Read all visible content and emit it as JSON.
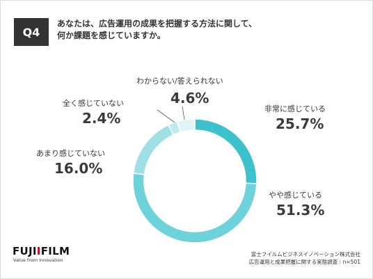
{
  "question": {
    "badge": "Q4",
    "line1": "あなたは、広告運用の成果を把握する方法に関して、",
    "line2": "何か課題を感じていますか。"
  },
  "chart_data": {
    "type": "pie",
    "categories": [
      "非常に感じている",
      "やや感じている",
      "あまり感じていない",
      "全く感じていない",
      "わからない/答えられない"
    ],
    "values": [
      25.7,
      51.3,
      16.0,
      2.4,
      4.6
    ],
    "value_labels": [
      "25.7%",
      "51.3%",
      "16.0%",
      "2.4%",
      "4.6%"
    ],
    "colors": [
      "#3dc1cc",
      "#6dd2da",
      "#9ee0e5",
      "#bfeaed",
      "#def4f6"
    ]
  },
  "branding": {
    "logo_pre": "FUJI",
    "logo_accent": "Ⅰ",
    "logo_post": "FILM",
    "tagline": "Value from Innovation"
  },
  "footer": {
    "line1": "富士フイルムビジネスイノベーション株式会社",
    "line2": "広告運用と成果把握に関する実態調査｜n=501"
  }
}
